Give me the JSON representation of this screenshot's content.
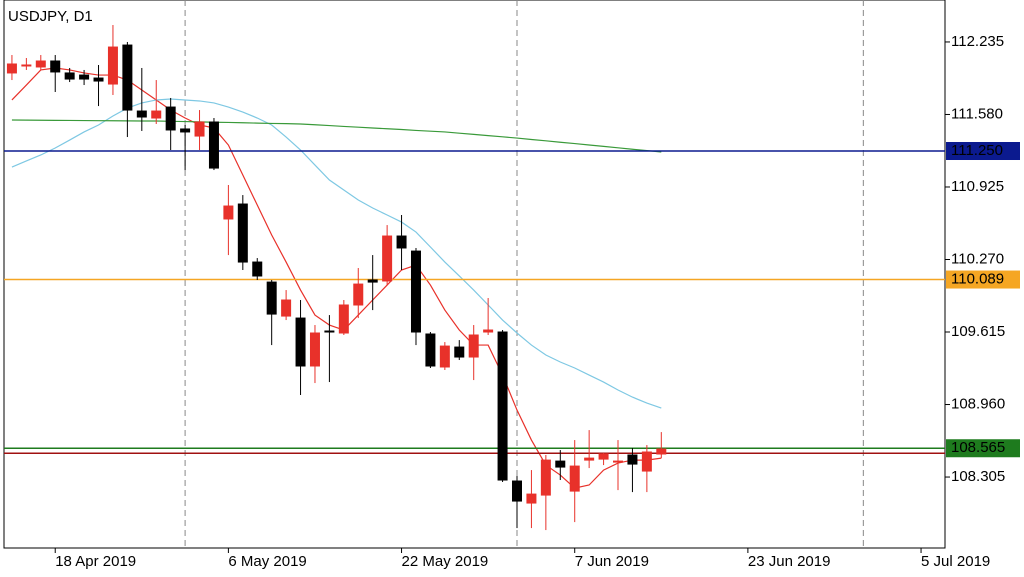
{
  "chart_data": {
    "type": "candlestick",
    "title": "USDJPY, D1",
    "x": [
      0,
      1,
      2,
      3,
      4,
      5,
      6,
      7,
      8,
      9,
      10,
      11,
      12,
      13,
      14,
      15,
      16,
      17,
      18,
      19,
      20,
      21,
      22,
      23,
      24,
      25,
      26,
      27,
      28,
      29,
      30,
      31,
      32,
      33,
      34,
      35,
      36,
      37,
      38,
      39,
      40,
      41,
      42,
      43,
      44,
      45
    ],
    "open": [
      111.955,
      112.027,
      112.009,
      112.063,
      111.955,
      111.936,
      111.909,
      111.855,
      112.207,
      111.611,
      111.548,
      111.647,
      111.449,
      111.385,
      111.512,
      110.636,
      110.771,
      110.247,
      110.066,
      109.759,
      109.741,
      109.308,
      109.624,
      109.606,
      109.859,
      110.085,
      110.076,
      110.482,
      110.346,
      109.597,
      109.299,
      109.479,
      109.389,
      109.615,
      109.615,
      108.269,
      108.07,
      108.142,
      108.449,
      108.178,
      108.458,
      108.467,
      108.449,
      108.504,
      108.359,
      108.513
    ],
    "high": [
      112.117,
      112.09,
      112.117,
      112.117,
      112.0,
      111.982,
      112.027,
      112.388,
      112.235,
      112.0,
      111.891,
      111.729,
      111.485,
      111.62,
      111.548,
      110.943,
      110.852,
      110.283,
      110.085,
      109.994,
      109.904,
      109.678,
      109.768,
      109.904,
      110.193,
      110.31,
      110.581,
      110.672,
      110.374,
      109.615,
      109.524,
      109.542,
      109.678,
      109.922,
      109.633,
      108.314,
      108.368,
      108.504,
      108.549,
      108.639,
      108.729,
      108.522,
      108.639,
      108.567,
      108.594,
      108.711
    ],
    "low": [
      111.891,
      111.982,
      111.982,
      111.783,
      111.873,
      111.846,
      111.656,
      111.756,
      111.376,
      111.431,
      111.494,
      111.259,
      111.078,
      111.259,
      111.078,
      110.31,
      110.175,
      110.085,
      109.497,
      109.723,
      109.046,
      109.154,
      109.163,
      109.588,
      109.741,
      109.813,
      110.039,
      110.175,
      109.497,
      109.29,
      109.272,
      109.362,
      109.181,
      109.588,
      108.26,
      107.844,
      107.844,
      107.826,
      108.278,
      107.898,
      108.386,
      108.413,
      108.187,
      108.169,
      108.169,
      108.476
    ],
    "close": [
      112.036,
      112.027,
      112.063,
      111.964,
      111.9,
      111.9,
      111.882,
      112.189,
      111.62,
      111.557,
      111.611,
      111.44,
      111.422,
      111.512,
      111.096,
      110.753,
      110.247,
      110.121,
      109.777,
      109.904,
      109.308,
      109.606,
      109.615,
      109.859,
      110.048,
      110.066,
      110.482,
      110.374,
      109.615,
      109.308,
      109.488,
      109.389,
      109.588,
      109.633,
      108.278,
      108.088,
      108.151,
      108.458,
      108.395,
      108.404,
      108.476,
      108.513,
      108.449,
      108.422,
      108.531,
      108.558
    ],
    "up_color": "#e8312a",
    "down_color": "#000000",
    "moving_averages": [
      {
        "color": "#e8312a",
        "values": [
          111.711,
          111.846,
          111.982,
          112.0,
          111.982,
          111.955,
          111.936,
          111.936,
          111.891,
          111.801,
          111.711,
          111.62,
          111.548,
          111.485,
          111.458,
          111.304,
          111.033,
          110.762,
          110.491,
          110.247,
          109.994,
          109.768,
          109.678,
          109.633,
          109.768,
          109.904,
          110.039,
          110.175,
          110.22,
          110.039,
          109.813,
          109.633,
          109.497,
          109.497,
          109.226,
          108.91,
          108.639,
          108.413,
          108.323,
          108.205,
          108.233,
          108.368,
          108.431,
          108.458,
          108.458,
          108.476
        ]
      },
      {
        "color": "#7ec8e3",
        "values": [
          111.105,
          111.16,
          111.214,
          111.277,
          111.349,
          111.422,
          111.485,
          111.566,
          111.638,
          111.684,
          111.711,
          111.72,
          111.711,
          111.702,
          111.684,
          111.647,
          111.602,
          111.548,
          111.485,
          111.376,
          111.259,
          111.123,
          110.988,
          110.898,
          110.807,
          110.735,
          110.672,
          110.608,
          110.518,
          110.383,
          110.247,
          110.121,
          109.994,
          109.859,
          109.723,
          109.606,
          109.497,
          109.407,
          109.344,
          109.29,
          109.226,
          109.163,
          109.091,
          109.027,
          108.973,
          108.928
        ]
      },
      {
        "color": "#3a9a3a",
        "values": [
          111.53,
          111.529,
          111.528,
          111.527,
          111.526,
          111.525,
          111.524,
          111.523,
          111.522,
          111.521,
          111.521,
          111.518,
          111.516,
          111.513,
          111.51,
          111.508,
          111.505,
          111.502,
          111.499,
          111.497,
          111.494,
          111.487,
          111.48,
          111.472,
          111.465,
          111.458,
          111.451,
          111.444,
          111.436,
          111.429,
          111.422,
          111.411,
          111.4,
          111.389,
          111.378,
          111.367,
          111.354,
          111.342,
          111.329,
          111.317,
          111.304,
          111.292,
          111.279,
          111.266,
          111.254,
          111.241
        ]
      }
    ],
    "hlines": [
      {
        "value": 111.25,
        "label": "111.250",
        "color": "#0b1a8f"
      },
      {
        "value": 110.089,
        "label": "110.089",
        "color": "#f5a623"
      },
      {
        "value": 108.52,
        "color": "#a01010"
      },
      {
        "value": 108.565,
        "label": "108.565",
        "color": "#1e7b1e"
      }
    ],
    "separators": [
      12,
      35,
      59
    ],
    "xlim": [
      -0.55,
      64.66
    ],
    "xticks": [
      {
        "value": 3,
        "label": "18 Apr 2019"
      },
      {
        "value": 15,
        "label": "6 May 2019"
      },
      {
        "value": 27,
        "label": "22 May 2019"
      },
      {
        "value": 39,
        "label": "7 Jun 2019"
      },
      {
        "value": 51,
        "label": "23 Jun 2019"
      },
      {
        "value": 63,
        "label": "5 Jul 2019"
      }
    ],
    "ylim": [
      107.664,
      112.614
    ],
    "yticks": [
      112.235,
      {
        "value": 111.58,
        "label": "111.580"
      },
      110.925,
      {
        "value": 110.27,
        "label": "110.270"
      },
      109.615,
      {
        "value": 108.96,
        "label": "108.960"
      },
      108.305
    ]
  }
}
